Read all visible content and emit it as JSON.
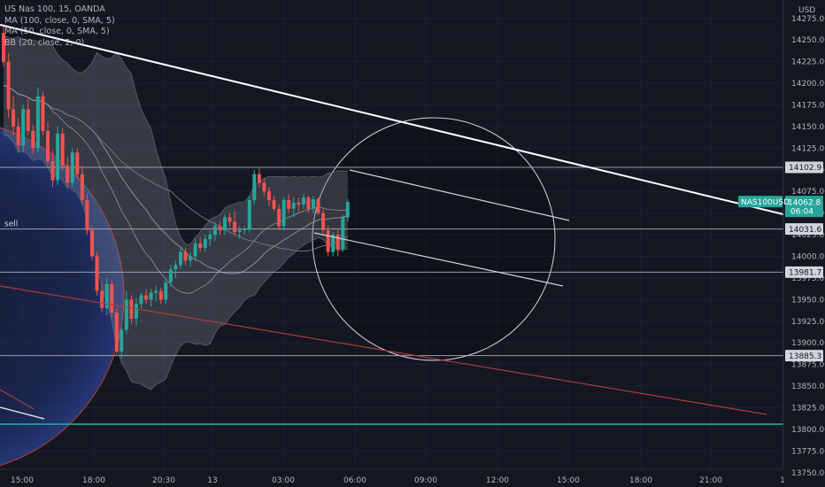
{
  "chart_data": {
    "type": "candlestick",
    "symbol_line": "US Nas 100, 15, OANDA",
    "indicators": [
      "MA (100, close, 0, SMA, 5)",
      "MA (50, close, 0, SMA, 5)",
      "BB (20, close, 2, 0)"
    ],
    "currency": "USD",
    "y_ticks": [
      14275,
      14250,
      14225,
      14200,
      14175,
      14150,
      14125,
      14100,
      14075,
      14050,
      14025,
      14000,
      13975,
      13950,
      13925,
      13900,
      13875,
      13850,
      13825,
      13800,
      13775,
      13750
    ],
    "ylim": [
      13743,
      14297
    ],
    "x_ticks": [
      "15:00",
      "18:00",
      "20:30",
      "13",
      "03:00",
      "06:00",
      "09:00",
      "12:00",
      "15:00",
      "18:00",
      "21:00",
      "1"
    ],
    "price_levels": [
      {
        "label": "14102.9",
        "value": 14102.9
      },
      {
        "label": "14031.6",
        "value": 14031.6
      },
      {
        "label": "13981.7",
        "value": 13981.7
      },
      {
        "label": "13885.3",
        "value": 13885.3
      }
    ],
    "support_level": 13806,
    "sell_label": "sell",
    "last_price": {
      "symbol": "NAS100USD",
      "price": "14062.8",
      "countdown": "06:04",
      "value": 14062.8
    },
    "candles": [
      [
        14258,
        14268,
        14220,
        14225
      ],
      [
        14225,
        14235,
        14160,
        14170
      ],
      [
        14170,
        14185,
        14140,
        14150
      ],
      [
        14150,
        14160,
        14120,
        14128
      ],
      [
        14128,
        14175,
        14120,
        14170
      ],
      [
        14170,
        14182,
        14140,
        14145
      ],
      [
        14145,
        14152,
        14118,
        14125
      ],
      [
        14125,
        14195,
        14120,
        14185
      ],
      [
        14185,
        14190,
        14140,
        14145
      ],
      [
        14145,
        14155,
        14105,
        14110
      ],
      [
        14110,
        14122,
        14080,
        14088
      ],
      [
        14088,
        14150,
        14082,
        14142
      ],
      [
        14142,
        14148,
        14100,
        14105
      ],
      [
        14105,
        14115,
        14080,
        14085
      ],
      [
        14085,
        14125,
        14080,
        14120
      ],
      [
        14120,
        14125,
        14090,
        14095
      ],
      [
        14095,
        14105,
        14060,
        14065
      ],
      [
        14065,
        14072,
        14025,
        14030
      ],
      [
        14030,
        14035,
        13995,
        14000
      ],
      [
        14000,
        14005,
        13955,
        13960
      ],
      [
        13960,
        13968,
        13935,
        13940
      ],
      [
        13940,
        13975,
        13932,
        13968
      ],
      [
        13968,
        13972,
        13930,
        13935
      ],
      [
        13935,
        13940,
        13885,
        13890
      ],
      [
        13890,
        13918,
        13882,
        13915
      ],
      [
        13915,
        13960,
        13910,
        13950
      ],
      [
        13950,
        13955,
        13922,
        13928
      ],
      [
        13928,
        13952,
        13920,
        13945
      ],
      [
        13945,
        13958,
        13940,
        13955
      ],
      [
        13955,
        13962,
        13945,
        13950
      ],
      [
        13950,
        13962,
        13942,
        13958
      ],
      [
        13958,
        13966,
        13948,
        13960
      ],
      [
        13960,
        13964,
        13945,
        13950
      ],
      [
        13950,
        13975,
        13945,
        13970
      ],
      [
        13970,
        13990,
        13965,
        13985
      ],
      [
        13985,
        13995,
        13975,
        13990
      ],
      [
        13990,
        14010,
        13985,
        14005
      ],
      [
        14005,
        14010,
        13990,
        13995
      ],
      [
        13995,
        14005,
        13988,
        14000
      ],
      [
        14000,
        14020,
        13995,
        14015
      ],
      [
        14015,
        14022,
        14005,
        14010
      ],
      [
        14010,
        14025,
        14005,
        14020
      ],
      [
        14020,
        14030,
        14012,
        14025
      ],
      [
        14025,
        14040,
        14018,
        14035
      ],
      [
        14035,
        14040,
        14025,
        14030
      ],
      [
        14030,
        14048,
        14025,
        14045
      ],
      [
        14045,
        14050,
        14035,
        14040
      ],
      [
        14040,
        14052,
        14025,
        14028
      ],
      [
        14028,
        14035,
        14020,
        14030
      ],
      [
        14030,
        14035,
        14025,
        14032
      ],
      [
        14032,
        14070,
        14028,
        14065
      ],
      [
        14065,
        14100,
        14060,
        14095
      ],
      [
        14095,
        14102,
        14080,
        14085
      ],
      [
        14085,
        14090,
        14070,
        14075
      ],
      [
        14075,
        14080,
        14058,
        14065
      ],
      [
        14065,
        14070,
        14052,
        14055
      ],
      [
        14055,
        14060,
        14030,
        14035
      ],
      [
        14035,
        14068,
        14030,
        14065
      ],
      [
        14065,
        14072,
        14050,
        14055
      ],
      [
        14055,
        14068,
        14045,
        14062
      ],
      [
        14062,
        14068,
        14052,
        14060
      ],
      [
        14060,
        14072,
        14055,
        14068
      ],
      [
        14068,
        14070,
        14050,
        14055
      ],
      [
        14055,
        14070,
        14050,
        14066
      ],
      [
        14066,
        14068,
        14048,
        14050
      ],
      [
        14050,
        14055,
        14025,
        14030
      ],
      [
        14030,
        14035,
        14000,
        14005
      ],
      [
        14005,
        14028,
        14000,
        14025
      ],
      [
        14025,
        14030,
        14000,
        14008
      ],
      [
        14008,
        14048,
        14005,
        14045
      ],
      [
        14045,
        14066,
        14040,
        14062.8
      ]
    ]
  }
}
